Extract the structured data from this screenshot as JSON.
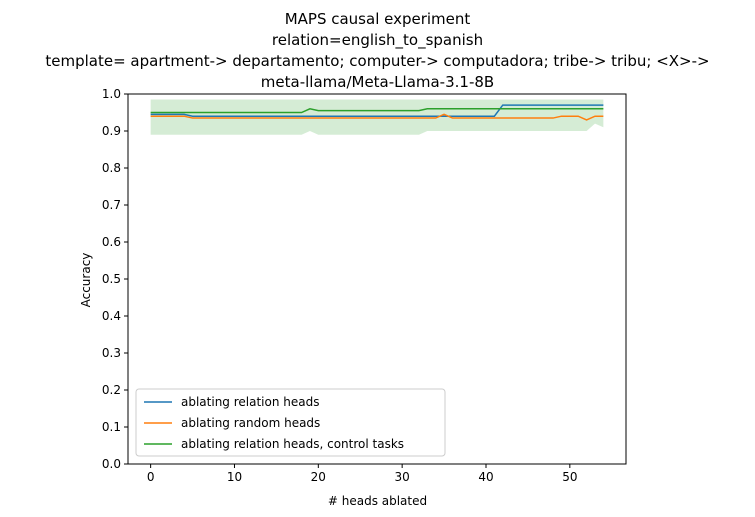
{
  "chart_data": {
    "type": "line",
    "title_lines": [
      "MAPS causal experiment",
      "relation=english_to_spanish",
      "template= apartment-> departamento; computer-> computadora; tribe-> tribu; <X>->",
      "meta-llama/Meta-Llama-3.1-8B"
    ],
    "xlabel": "# heads ablated",
    "ylabel": "Accuracy",
    "xlim": [
      -2.7,
      56.7
    ],
    "ylim": [
      0.0,
      1.0
    ],
    "xticks": [
      0,
      10,
      20,
      30,
      40,
      50
    ],
    "yticks": [
      0.0,
      0.1,
      0.2,
      0.3,
      0.4,
      0.5,
      0.6,
      0.7,
      0.8,
      0.9,
      1.0
    ],
    "grid": false,
    "legend_position": "lower-left",
    "series": [
      {
        "name": "ablating relation heads",
        "color": "#1f77b4",
        "x": [
          0,
          1,
          2,
          3,
          4,
          5,
          6,
          41,
          42,
          54
        ],
        "y": [
          0.945,
          0.945,
          0.945,
          0.945,
          0.945,
          0.94,
          0.94,
          0.94,
          0.97,
          0.97
        ]
      },
      {
        "name": "ablating random heads",
        "color": "#ff7f0e",
        "x": [
          0,
          1,
          2,
          3,
          4,
          5,
          6,
          20,
          33,
          34,
          35,
          36,
          37,
          48,
          49,
          51,
          52,
          53,
          54
        ],
        "y": [
          0.94,
          0.94,
          0.94,
          0.94,
          0.94,
          0.935,
          0.935,
          0.935,
          0.935,
          0.935,
          0.945,
          0.935,
          0.935,
          0.935,
          0.94,
          0.94,
          0.93,
          0.94,
          0.94
        ]
      },
      {
        "name": "ablating relation heads, control tasks",
        "color": "#2ca02c",
        "x": [
          0,
          1,
          5,
          10,
          18,
          19,
          20,
          32,
          33,
          40,
          54
        ],
        "y": [
          0.95,
          0.95,
          0.95,
          0.95,
          0.95,
          0.96,
          0.955,
          0.955,
          0.96,
          0.96,
          0.96
        ],
        "band_color": "#2ca02c",
        "band": {
          "x": [
            0,
            18,
            19,
            20,
            32,
            33,
            52,
            53,
            54
          ],
          "lower": [
            0.89,
            0.89,
            0.9,
            0.89,
            0.89,
            0.9,
            0.9,
            0.92,
            0.91
          ],
          "upper": [
            0.985,
            0.985,
            0.985,
            0.985,
            0.985,
            0.985,
            0.985,
            0.985,
            0.985
          ]
        }
      }
    ]
  }
}
